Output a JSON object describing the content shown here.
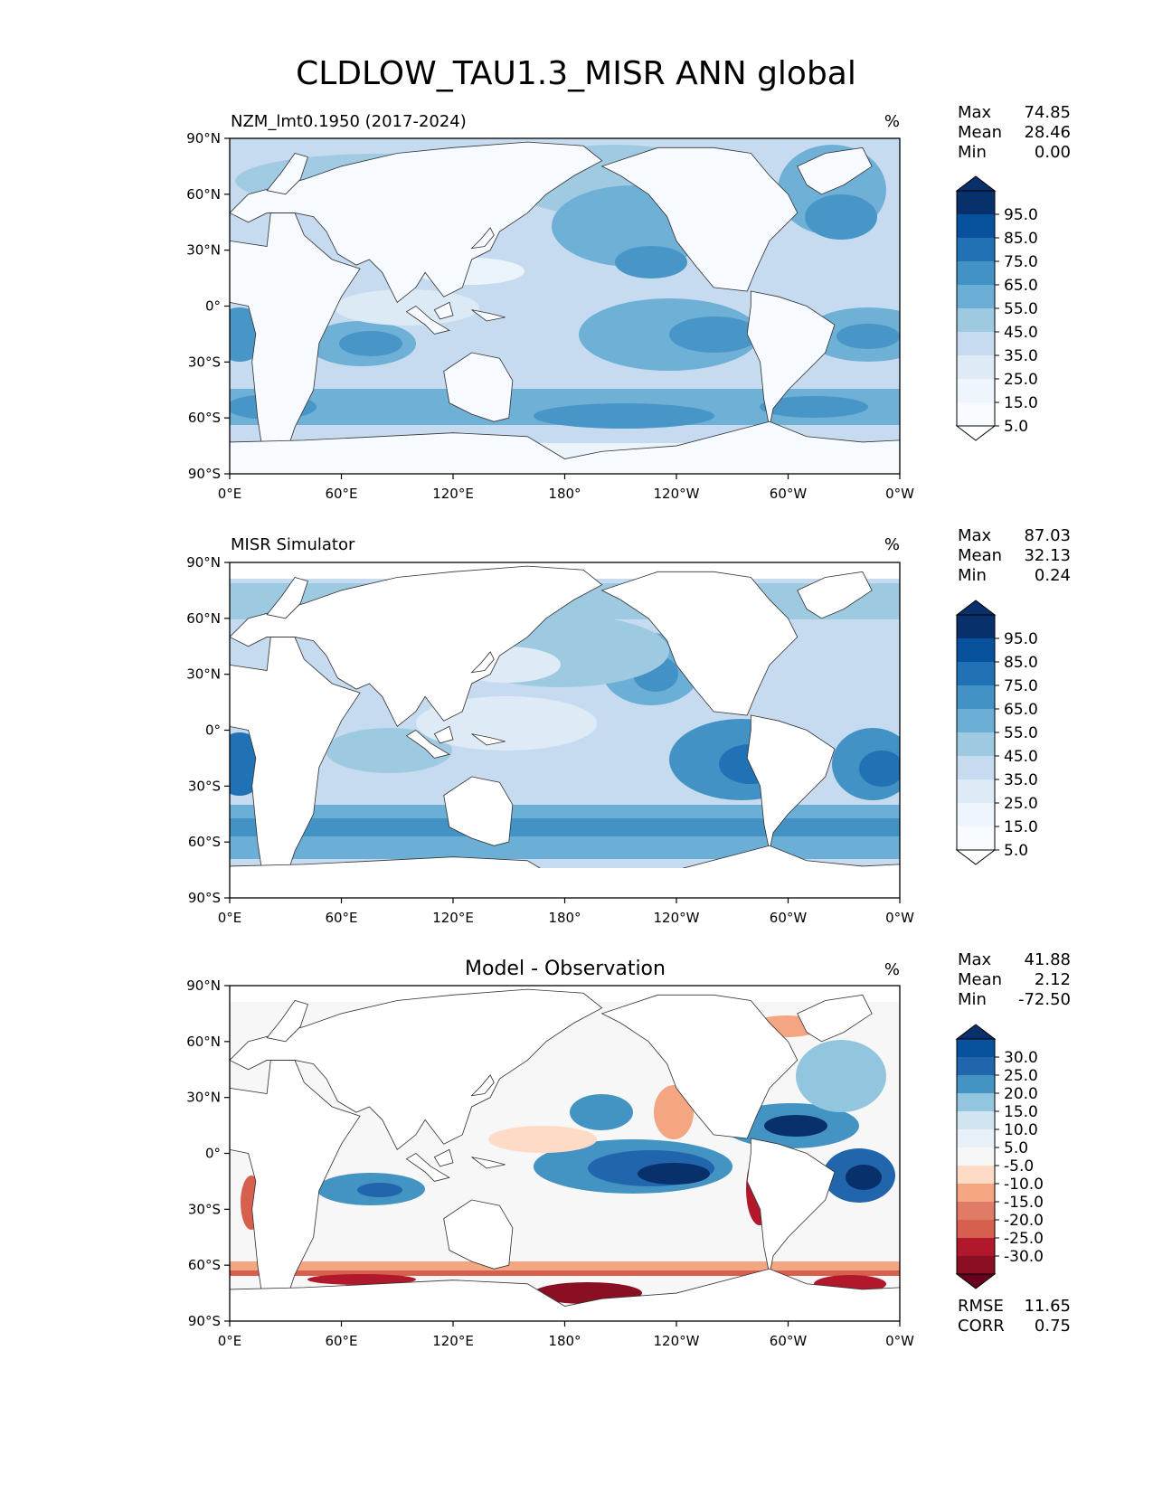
{
  "figure_title": "CLDLOW_TAU1.3_MISR ANN global",
  "chart_data": [
    {
      "type": "heatmap",
      "title": "NZM_lmt0.1950 (2017-2024)",
      "center_title": "",
      "units": "%",
      "stats": [
        {
          "label": "Max",
          "value": "74.85"
        },
        {
          "label": "Mean",
          "value": "28.46"
        },
        {
          "label": "Min",
          "value": "0.00"
        }
      ],
      "x_ticks": [
        "0°E",
        "60°E",
        "120°E",
        "180°",
        "120°W",
        "60°W",
        "0°W"
      ],
      "y_ticks": [
        "90°N",
        "60°N",
        "30°N",
        "0°",
        "30°S",
        "60°S",
        "90°S"
      ],
      "xlim": [
        0,
        360
      ],
      "ylim": [
        -90,
        90
      ],
      "colorbar": {
        "levels": [
          "95.0",
          "85.0",
          "75.0",
          "65.0",
          "55.0",
          "45.0",
          "35.0",
          "25.0",
          "15.0",
          "5.0"
        ],
        "colors": [
          "#08306b",
          "#08519c",
          "#2171b5",
          "#4292c6",
          "#6baed6",
          "#9ecae1",
          "#c6dbef",
          "#deebf7",
          "#eef5fc",
          "#f7fbff"
        ],
        "top_color": "#08306b",
        "bottom_color": "#ffffff"
      },
      "footer": []
    },
    {
      "type": "heatmap",
      "title": "MISR Simulator",
      "center_title": "",
      "units": "%",
      "stats": [
        {
          "label": "Max",
          "value": "87.03"
        },
        {
          "label": "Mean",
          "value": "32.13"
        },
        {
          "label": "Min",
          "value": "0.24"
        }
      ],
      "x_ticks": [
        "0°E",
        "60°E",
        "120°E",
        "180°",
        "120°W",
        "60°W",
        "0°W"
      ],
      "y_ticks": [
        "90°N",
        "60°N",
        "30°N",
        "0°",
        "30°S",
        "60°S",
        "90°S"
      ],
      "xlim": [
        0,
        360
      ],
      "ylim": [
        -90,
        90
      ],
      "colorbar": {
        "levels": [
          "95.0",
          "85.0",
          "75.0",
          "65.0",
          "55.0",
          "45.0",
          "35.0",
          "25.0",
          "15.0",
          "5.0"
        ],
        "colors": [
          "#08306b",
          "#08519c",
          "#2171b5",
          "#4292c6",
          "#6baed6",
          "#9ecae1",
          "#c6dbef",
          "#deebf7",
          "#eef5fc",
          "#f7fbff"
        ],
        "top_color": "#08306b",
        "bottom_color": "#ffffff"
      },
      "footer": []
    },
    {
      "type": "heatmap",
      "title": "",
      "center_title": "Model - Observation",
      "units": "%",
      "stats": [
        {
          "label": "Max",
          "value": "41.88"
        },
        {
          "label": "Mean",
          "value": "2.12"
        },
        {
          "label": "Min",
          "value": "-72.50"
        }
      ],
      "x_ticks": [
        "0°E",
        "60°E",
        "120°E",
        "180°",
        "120°W",
        "60°W",
        "0°W"
      ],
      "y_ticks": [
        "90°N",
        "60°N",
        "30°N",
        "0°",
        "30°S",
        "60°S",
        "90°S"
      ],
      "xlim": [
        0,
        360
      ],
      "ylim": [
        -90,
        90
      ],
      "colorbar": {
        "levels": [
          "30.0",
          "25.0",
          "20.0",
          "15.0",
          "10.0",
          "5.0",
          "-5.0",
          "-10.0",
          "-15.0",
          "-20.0",
          "-25.0",
          "-30.0"
        ],
        "colors": [
          "#08519c",
          "#2166ac",
          "#4393c3",
          "#92c5de",
          "#d1e5f0",
          "#e8f1f7",
          "#f7f7f7",
          "#fddbc7",
          "#f4a582",
          "#e07b68",
          "#d6604d",
          "#b2182b",
          "#8a0f22"
        ],
        "top_color": "#08306b",
        "bottom_color": "#67001f"
      },
      "footer": [
        {
          "label": "RMSE",
          "value": "11.65"
        },
        {
          "label": "CORR",
          "value": "0.75"
        }
      ]
    }
  ]
}
